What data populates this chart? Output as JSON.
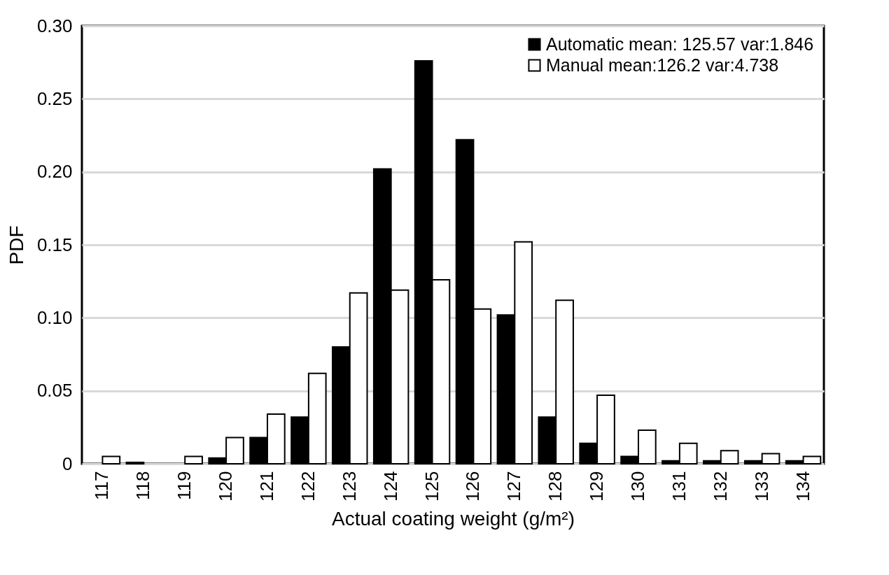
{
  "chart_data": {
    "type": "bar",
    "xlabel": "Actual coating weight (g/m²)",
    "ylabel": "PDF",
    "categories": [
      "117",
      "118",
      "119",
      "120",
      "121",
      "122",
      "123",
      "124",
      "125",
      "126",
      "127",
      "128",
      "129",
      "130",
      "131",
      "132",
      "133",
      "134"
    ],
    "series": [
      {
        "name": "Automatic mean: 125.57 var:1.846",
        "color": "#000000",
        "values": [
          0,
          0.001,
          0,
          0.004,
          0.018,
          0.032,
          0.08,
          0.202,
          0.276,
          0.222,
          0.102,
          0.032,
          0.014,
          0.005,
          0.002,
          0.002,
          0.002,
          0.002
        ]
      },
      {
        "name": "Manual mean:126.2 var:4.738",
        "color": "#ffffff",
        "values": [
          0.005,
          0,
          0.005,
          0.018,
          0.034,
          0.062,
          0.117,
          0.119,
          0.126,
          0.106,
          0.152,
          0.112,
          0.047,
          0.023,
          0.014,
          0.009,
          0.007,
          0.005
        ]
      }
    ],
    "ylim": [
      0,
      0.3
    ],
    "yticks": [
      {
        "value": 0,
        "label": "0"
      },
      {
        "value": 0.05,
        "label": "0.05"
      },
      {
        "value": 0.1,
        "label": "0.10"
      },
      {
        "value": 0.15,
        "label": "0.15"
      },
      {
        "value": 0.2,
        "label": "0.20"
      },
      {
        "value": 0.25,
        "label": "0.25"
      },
      {
        "value": 0.3,
        "label": "0.30"
      }
    ],
    "grid": "y",
    "legend": "top right"
  }
}
